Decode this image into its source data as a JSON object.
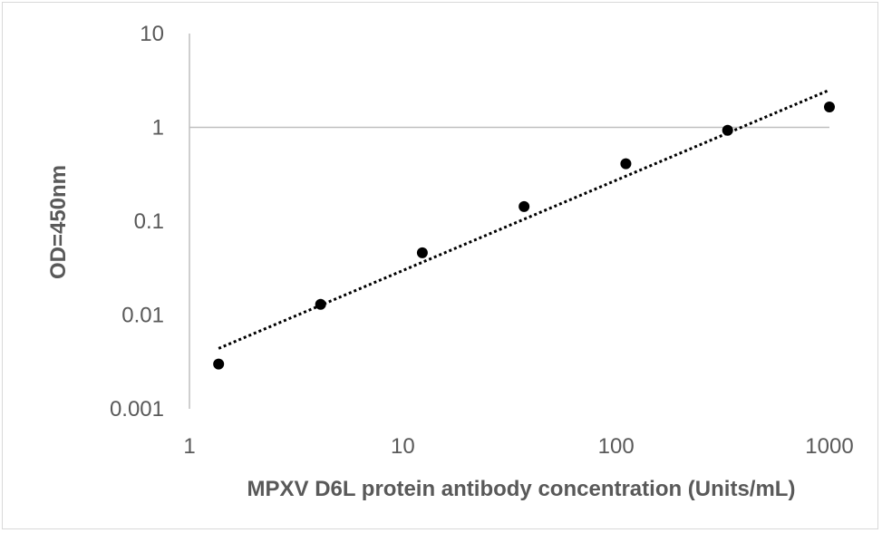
{
  "chart_data": {
    "type": "scatter",
    "title": "",
    "xlabel": "MPXV D6L protein antibody concentration (Units/mL)",
    "ylabel": "OD=450nm",
    "x_scale": "log",
    "y_scale": "log",
    "xlim": [
      1,
      1000
    ],
    "ylim": [
      0.001,
      10
    ],
    "x_ticks": [
      "1",
      "10",
      "100",
      "1000"
    ],
    "y_ticks": [
      "0.001",
      "0.01",
      "0.1",
      "1",
      "10"
    ],
    "reference_line_y": 1,
    "grid": false,
    "legend": "none",
    "series": [
      {
        "x": [
          1.37,
          4.12,
          12.35,
          37.04,
          111.1,
          333.3,
          1000
        ],
        "y": [
          0.003,
          0.013,
          0.046,
          0.143,
          0.41,
          0.93,
          1.65
        ],
        "color": "#000000"
      }
    ],
    "trendline": {
      "style": "dotted",
      "x": [
        1.37,
        1000
      ],
      "y": [
        0.0044,
        2.5
      ],
      "color": "#000000"
    },
    "colors": {
      "tick_text": "#595959",
      "axis_line": "#bfbfbf",
      "marker": "#000000",
      "frame": "#d9d9d9"
    }
  }
}
